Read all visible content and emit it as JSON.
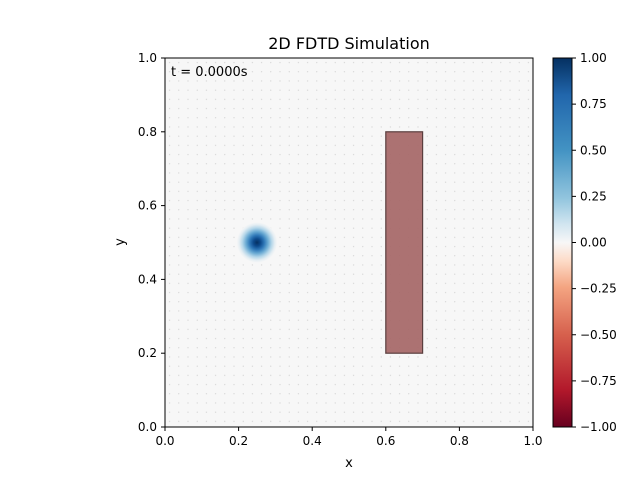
{
  "chart_data": {
    "type": "heatmap",
    "title": "2D FDTD Simulation",
    "xlabel": "x",
    "ylabel": "y",
    "xlim": [
      0.0,
      1.0
    ],
    "ylim": [
      0.0,
      1.0
    ],
    "x_ticks": [
      "0.0",
      "0.2",
      "0.4",
      "0.6",
      "0.8",
      "1.0"
    ],
    "y_ticks": [
      "0.0",
      "0.2",
      "0.4",
      "0.6",
      "0.8",
      "1.0"
    ],
    "time_label": "t = 0.0000s",
    "colormap": "RdBu",
    "colorbar": {
      "range": [
        -1.0,
        1.0
      ],
      "ticks": [
        "−1.00",
        "−0.75",
        "−0.50",
        "−0.25",
        "0.00",
        "0.25",
        "0.50",
        "0.75",
        "1.00"
      ]
    },
    "field": {
      "source_center": [
        0.25,
        0.5
      ],
      "source_sigma": 0.05,
      "peak_value": 1.0,
      "background_value": 0.0
    },
    "obstacle": {
      "x_range": [
        0.6,
        0.7
      ],
      "y_range": [
        0.2,
        0.8
      ],
      "color": "#a86a6a",
      "edge_color": "#5a3e3e"
    },
    "grid_dots": true,
    "colors": {
      "background": "#f7f7f7",
      "deep_blue": "#053061",
      "deep_red": "#67001f"
    }
  }
}
